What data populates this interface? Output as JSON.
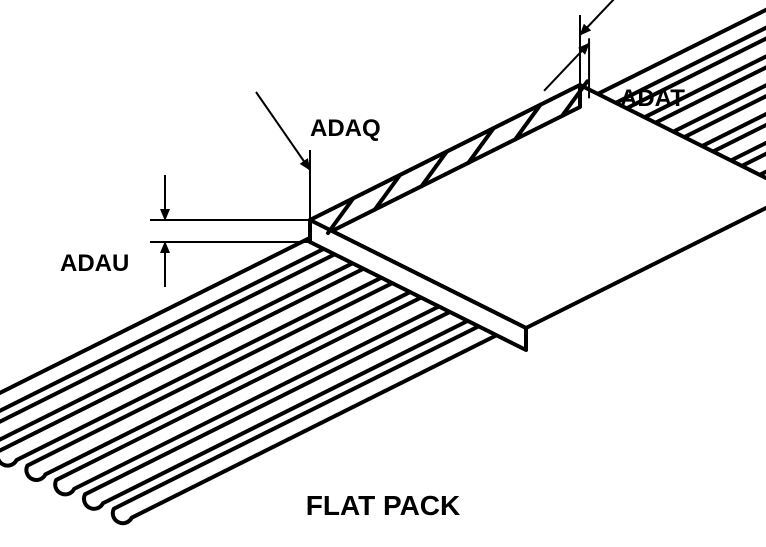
{
  "title": "FLAT PACK",
  "labels": {
    "adau": "ADAU",
    "adaq": "ADAQ",
    "adat": "ADAT"
  },
  "style": {
    "background": "#ffffff",
    "stroke": "#000000",
    "stroke_width_main": 4,
    "stroke_width_dim": 2,
    "fill_body": "#ffffff",
    "lead_width": 10,
    "label_fontsize": 24,
    "title_fontsize": 28
  },
  "geometry": {
    "iso_dx": 2.0,
    "iso_dy": -1.0,
    "thickness": 22,
    "body_length": 150,
    "body_depth": 120,
    "lead_count": 7,
    "lead_length": 210,
    "lead_spacing": 16
  }
}
